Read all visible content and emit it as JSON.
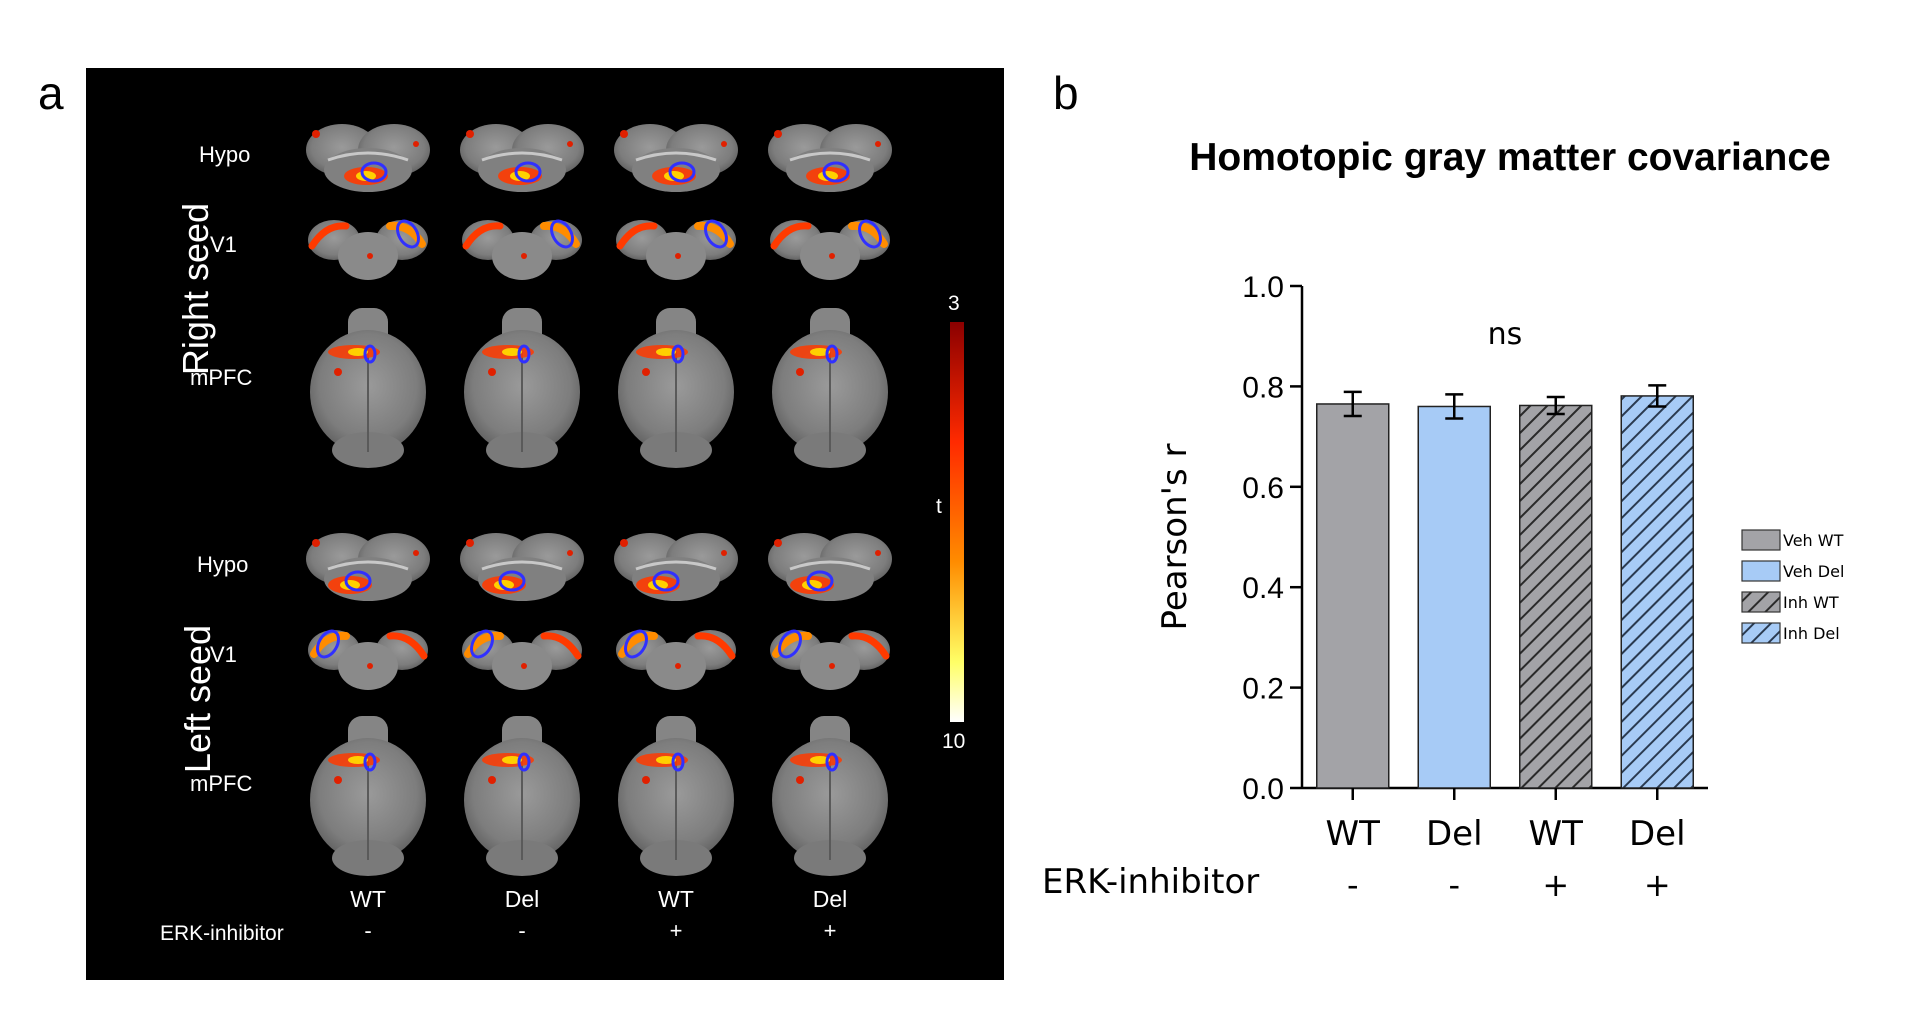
{
  "panel_a": {
    "letter": "a",
    "seeds": [
      {
        "label": "Right seed",
        "rows": [
          "Hypo",
          "V1",
          "mPFC"
        ]
      },
      {
        "label": "Left seed",
        "rows": [
          "Hypo",
          "V1",
          "mPFC"
        ]
      }
    ],
    "columns": [
      {
        "genotype": "WT",
        "inhibitor": "-"
      },
      {
        "genotype": "Del",
        "inhibitor": "-"
      },
      {
        "genotype": "WT",
        "inhibitor": "+"
      },
      {
        "genotype": "Del",
        "inhibitor": "+"
      }
    ],
    "inhibitor_label": "ERK-inhibitor",
    "colorbar": {
      "top": "3",
      "middle": "t",
      "bottom": "10",
      "colors": [
        "#8b0000",
        "#ff2a00",
        "#ff8c00",
        "#ffff66",
        "#ffffff"
      ]
    }
  },
  "panel_b": {
    "letter": "b"
  },
  "chart_data": {
    "type": "bar",
    "title": "Homotopic gray matter covariance",
    "ylabel": "Pearson's r",
    "xlabel": "",
    "ylim": [
      0.0,
      1.0
    ],
    "yticks": [
      "0.0",
      "0.2",
      "0.4",
      "0.6",
      "0.8",
      "1.0"
    ],
    "categories": [
      "WT",
      "Del",
      "WT",
      "Del"
    ],
    "inhibitor_label": "ERK-inhibitor",
    "inhibitor_signs": [
      "-",
      "-",
      "+",
      "+"
    ],
    "values": [
      0.765,
      0.76,
      0.762,
      0.781
    ],
    "errors": [
      0.024,
      0.024,
      0.017,
      0.021
    ],
    "annotation": "ns",
    "legend": [
      {
        "label": "Veh WT",
        "color": "#a3a3a7",
        "hatched": false
      },
      {
        "label": "Veh Del",
        "color": "#a7cbf6",
        "hatched": false
      },
      {
        "label": "Inh WT",
        "color": "#a3a3a7",
        "hatched": true
      },
      {
        "label": "Inh Del",
        "color": "#a7cbf6",
        "hatched": true
      }
    ],
    "legend_position": "right"
  }
}
